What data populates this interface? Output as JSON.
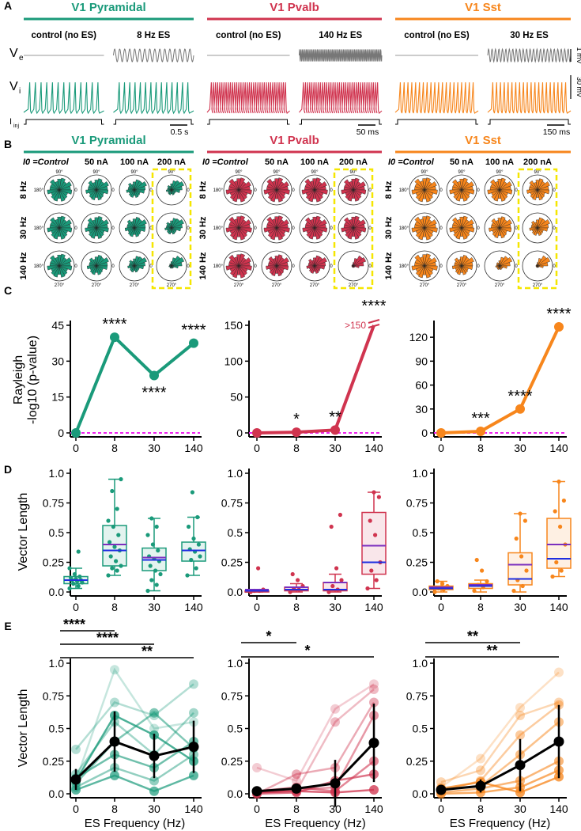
{
  "colors": {
    "pyramidal": "#1a9a7a",
    "pvalb": "#d0344f",
    "sst": "#f7861c",
    "trace_gray": "#777777",
    "zero_line": "#ee22ee",
    "mean_line": "#7b2fbe",
    "median_line": "#1f2ee0",
    "highlight_box": "#f5e600"
  },
  "panel_letters": [
    "A",
    "B",
    "C",
    "D",
    "E"
  ],
  "cell_types": [
    "V1 Pyramidal",
    "V1 Pvalb",
    "V1 Sst"
  ],
  "panelA": {
    "conditions": [
      [
        "control (no ES)",
        "8 Hz ES"
      ],
      [
        "control (no ES)",
        "140 Hz ES"
      ],
      [
        "control (no ES)",
        "30 Hz ES"
      ]
    ],
    "row_labels": {
      "ve": "V",
      "ve_sub": "e",
      "vi": "V",
      "vi_sub": "i",
      "iinj": "I",
      "iinj_sub": "inj"
    },
    "time_scale": [
      "0.5 s",
      "50 ms",
      "150 ms"
    ],
    "ve_scale": "1 mV",
    "vi_scale": "30 mV",
    "es_cycles": [
      16,
      60,
      24
    ],
    "spike_counts": [
      [
        13,
        14
      ],
      [
        36,
        36
      ],
      [
        20,
        20
      ]
    ]
  },
  "panelB": {
    "col_header_i0": "I0 =",
    "col_labels": [
      "Control",
      "50 nA",
      "100 nA",
      "200 nA"
    ],
    "row_labels": [
      "8 Hz",
      "30 Hz",
      "140 Hz"
    ],
    "angle_labels": {
      "top": "90°",
      "left": "180°",
      "bottom": "270°",
      "right": "0"
    },
    "concentration": [
      [
        [
          0.1,
          0.2,
          0.4,
          0.6
        ],
        [
          0.1,
          0.15,
          0.3,
          0.5
        ],
        [
          0.1,
          0.3,
          0.5,
          0.8
        ]
      ],
      [
        [
          0.05,
          0.05,
          0.05,
          0.1
        ],
        [
          0.05,
          0.05,
          0.1,
          0.1
        ],
        [
          0.05,
          0.2,
          0.4,
          0.9
        ]
      ],
      [
        [
          0.05,
          0.1,
          0.1,
          0.2
        ],
        [
          0.05,
          0.1,
          0.2,
          0.4
        ],
        [
          0.05,
          0.3,
          0.7,
          0.9
        ]
      ]
    ]
  },
  "chart_data": [
    {
      "type": "line",
      "panel": "C",
      "cell_type": "V1 Pyramidal",
      "ylabel": [
        "Rayleigh",
        "-log10 (p-value)"
      ],
      "categories": [
        "0",
        "8",
        "30",
        "140"
      ],
      "values": [
        0,
        40,
        24,
        37.5
      ],
      "significance": [
        "",
        "****",
        "****",
        "****"
      ],
      "ylim": [
        0,
        45
      ],
      "yticks": [
        0,
        15,
        30,
        45
      ],
      "reference_line": 0
    },
    {
      "type": "line",
      "panel": "C",
      "cell_type": "V1 Pvalb",
      "categories": [
        "0",
        "8",
        "30",
        "140"
      ],
      "values": [
        0,
        1,
        4,
        150
      ],
      "significance": [
        "",
        "*",
        "**",
        "****"
      ],
      "ylim": [
        0,
        150
      ],
      "yticks": [
        0,
        50,
        100,
        150
      ],
      "break_label": ">150",
      "reference_line": 0
    },
    {
      "type": "line",
      "panel": "C",
      "cell_type": "V1 Sst",
      "categories": [
        "0",
        "8",
        "30",
        "140"
      ],
      "values": [
        0,
        2,
        30,
        133
      ],
      "significance": [
        "",
        "***",
        "****",
        "****"
      ],
      "ylim": [
        0,
        135
      ],
      "yticks": [
        0,
        30,
        60,
        90,
        120
      ],
      "reference_line": 0
    },
    {
      "type": "box",
      "panel": "D",
      "cell_type": "V1 Pyramidal",
      "ylabel": "Vector Length",
      "categories": [
        "0",
        "8",
        "30",
        "140"
      ],
      "ylim": [
        0,
        1
      ],
      "yticks": [
        "0.0",
        "0.25",
        "0.5",
        "0.75",
        "1.0"
      ],
      "boxes": [
        {
          "q1": 0.07,
          "median": 0.1,
          "q3": 0.13,
          "mean": 0.1,
          "whisker": [
            0.03,
            0.2
          ],
          "points": [
            0.03,
            0.05,
            0.07,
            0.08,
            0.09,
            0.1,
            0.1,
            0.11,
            0.12,
            0.13,
            0.15,
            0.2,
            0.34
          ]
        },
        {
          "q1": 0.22,
          "median": 0.35,
          "q3": 0.56,
          "mean": 0.4,
          "whisker": [
            0.14,
            0.95
          ],
          "points": [
            0.14,
            0.18,
            0.2,
            0.22,
            0.26,
            0.3,
            0.35,
            0.38,
            0.42,
            0.48,
            0.55,
            0.6,
            0.7,
            0.85,
            0.95
          ]
        },
        {
          "q1": 0.18,
          "median": 0.27,
          "q3": 0.37,
          "mean": 0.29,
          "whisker": [
            0.01,
            0.62
          ],
          "points": [
            0.01,
            0.06,
            0.1,
            0.15,
            0.18,
            0.22,
            0.26,
            0.28,
            0.3,
            0.35,
            0.4,
            0.48,
            0.55,
            0.62
          ]
        },
        {
          "q1": 0.26,
          "median": 0.35,
          "q3": 0.42,
          "mean": 0.35,
          "whisker": [
            0.14,
            0.63
          ],
          "points": [
            0.14,
            0.2,
            0.27,
            0.3,
            0.34,
            0.36,
            0.4,
            0.45,
            0.55,
            0.63,
            0.84
          ]
        }
      ]
    },
    {
      "type": "box",
      "panel": "D",
      "cell_type": "V1 Pvalb",
      "categories": [
        "0",
        "8",
        "30",
        "140"
      ],
      "ylim": [
        0,
        1
      ],
      "yticks": [
        "0.0",
        "0.25",
        "0.5",
        "0.75",
        "1.0"
      ],
      "boxes": [
        {
          "q1": 0.0,
          "median": 0.01,
          "q3": 0.01,
          "mean": 0.02,
          "whisker": [
            0.0,
            0.02
          ],
          "points": [
            0.0,
            0.01,
            0.01,
            0.02,
            0.2
          ]
        },
        {
          "q1": 0.01,
          "median": 0.02,
          "q3": 0.04,
          "mean": 0.04,
          "whisker": [
            0.0,
            0.07
          ],
          "points": [
            0.0,
            0.02,
            0.03,
            0.05,
            0.1,
            0.15
          ]
        },
        {
          "q1": 0.01,
          "median": 0.02,
          "q3": 0.08,
          "mean": 0.08,
          "whisker": [
            0.0,
            0.15
          ],
          "points": [
            0.0,
            0.02,
            0.05,
            0.1,
            0.2,
            0.55,
            0.65
          ]
        },
        {
          "q1": 0.15,
          "median": 0.25,
          "q3": 0.67,
          "mean": 0.39,
          "whisker": [
            0.03,
            0.84
          ],
          "points": [
            0.03,
            0.1,
            0.18,
            0.25,
            0.48,
            0.6,
            0.8,
            0.84
          ]
        }
      ]
    },
    {
      "type": "box",
      "panel": "D",
      "cell_type": "V1 Sst",
      "categories": [
        "0",
        "8",
        "30",
        "140"
      ],
      "ylim": [
        0,
        1
      ],
      "yticks": [
        "0.0",
        "0.25",
        "0.5",
        "0.75",
        "1.0"
      ],
      "boxes": [
        {
          "q1": 0.02,
          "median": 0.03,
          "q3": 0.05,
          "mean": 0.04,
          "whisker": [
            0.0,
            0.09
          ],
          "points": [
            0.0,
            0.02,
            0.03,
            0.05,
            0.07,
            0.09
          ]
        },
        {
          "q1": 0.03,
          "median": 0.05,
          "q3": 0.07,
          "mean": 0.06,
          "whisker": [
            0.0,
            0.1
          ],
          "points": [
            0.01,
            0.04,
            0.06,
            0.09,
            0.18,
            0.27
          ]
        },
        {
          "q1": 0.06,
          "median": 0.11,
          "q3": 0.33,
          "mean": 0.23,
          "whisker": [
            0.0,
            0.66
          ],
          "points": [
            0.01,
            0.05,
            0.1,
            0.18,
            0.3,
            0.45,
            0.6,
            0.66
          ]
        },
        {
          "q1": 0.2,
          "median": 0.28,
          "q3": 0.62,
          "mean": 0.4,
          "whisker": [
            0.13,
            0.93
          ],
          "points": [
            0.13,
            0.18,
            0.25,
            0.4,
            0.55,
            0.68,
            0.77,
            0.93
          ]
        }
      ]
    },
    {
      "type": "line",
      "panel": "E",
      "cell_type": "V1 Pyramidal",
      "ylabel": "Vector Length",
      "xlabel": "ES Frequency (Hz)",
      "categories": [
        "0",
        "8",
        "30",
        "140"
      ],
      "ylim": [
        0,
        1
      ],
      "yticks": [
        "0.0",
        "0.25",
        "0.5",
        "0.75",
        "1.0"
      ],
      "mean": [
        0.11,
        0.4,
        0.29,
        0.36
      ],
      "error": [
        0.08,
        0.23,
        0.17,
        0.2
      ],
      "individual": [
        [
          0.1,
          0.95,
          0.5,
          0.55
        ],
        [
          0.34,
          0.7,
          0.6,
          0.84
        ],
        [
          0.15,
          0.55,
          0.3,
          0.62
        ],
        [
          0.05,
          0.2,
          0.1,
          0.3
        ],
        [
          0.08,
          0.4,
          0.62,
          0.35
        ],
        [
          0.12,
          0.3,
          0.2,
          0.4
        ],
        [
          0.03,
          0.14,
          0.02,
          0.14
        ],
        [
          0.1,
          0.6,
          0.45,
          0.25
        ]
      ],
      "significance": [
        {
          "from": "0",
          "to": "8",
          "label": "****"
        },
        {
          "from": "0",
          "to": "30",
          "label": "****"
        },
        {
          "from": "0",
          "to": "140",
          "label": "**"
        }
      ]
    },
    {
      "type": "line",
      "panel": "E",
      "cell_type": "V1 Pvalb",
      "xlabel": "ES Frequency (Hz)",
      "categories": [
        "0",
        "8",
        "30",
        "140"
      ],
      "ylim": [
        0,
        1
      ],
      "yticks": [
        "0.0",
        "0.25",
        "0.5",
        "0.75",
        "1.0"
      ],
      "mean": [
        0.02,
        0.04,
        0.08,
        0.39
      ],
      "error": [
        0.02,
        0.03,
        0.18,
        0.3
      ],
      "individual": [
        [
          0.2,
          0.1,
          0.65,
          0.84
        ],
        [
          0.01,
          0.02,
          0.55,
          0.8
        ],
        [
          0.0,
          0.15,
          0.2,
          0.7
        ],
        [
          0.01,
          0.03,
          0.05,
          0.6
        ],
        [
          0.02,
          0.05,
          0.02,
          0.25
        ],
        [
          0.0,
          0.01,
          0.1,
          0.15
        ],
        [
          0.01,
          0.02,
          0.01,
          0.03
        ]
      ],
      "significance": [
        {
          "from": "0",
          "to": "8",
          "label": "*"
        },
        {
          "from": "0",
          "to": "140",
          "label": "*"
        }
      ]
    },
    {
      "type": "line",
      "panel": "E",
      "cell_type": "V1 Sst",
      "xlabel": "ES Frequency (Hz)",
      "categories": [
        "0",
        "8",
        "30",
        "140"
      ],
      "ylim": [
        0,
        1
      ],
      "yticks": [
        "0.0",
        "0.25",
        "0.5",
        "0.75",
        "1.0"
      ],
      "mean": [
        0.03,
        0.06,
        0.22,
        0.4
      ],
      "error": [
        0.02,
        0.05,
        0.2,
        0.28
      ],
      "individual": [
        [
          0.05,
          0.27,
          0.66,
          0.93
        ],
        [
          0.09,
          0.18,
          0.6,
          0.7
        ],
        [
          0.02,
          0.1,
          0.45,
          0.68
        ],
        [
          0.03,
          0.06,
          0.3,
          0.55
        ],
        [
          0.01,
          0.04,
          0.1,
          0.25
        ],
        [
          0.0,
          0.01,
          0.05,
          0.18
        ],
        [
          0.04,
          0.09,
          0.01,
          0.13
        ]
      ],
      "significance": [
        {
          "from": "0",
          "to": "30",
          "label": "**"
        },
        {
          "from": "0",
          "to": "140",
          "label": "**"
        }
      ]
    }
  ]
}
